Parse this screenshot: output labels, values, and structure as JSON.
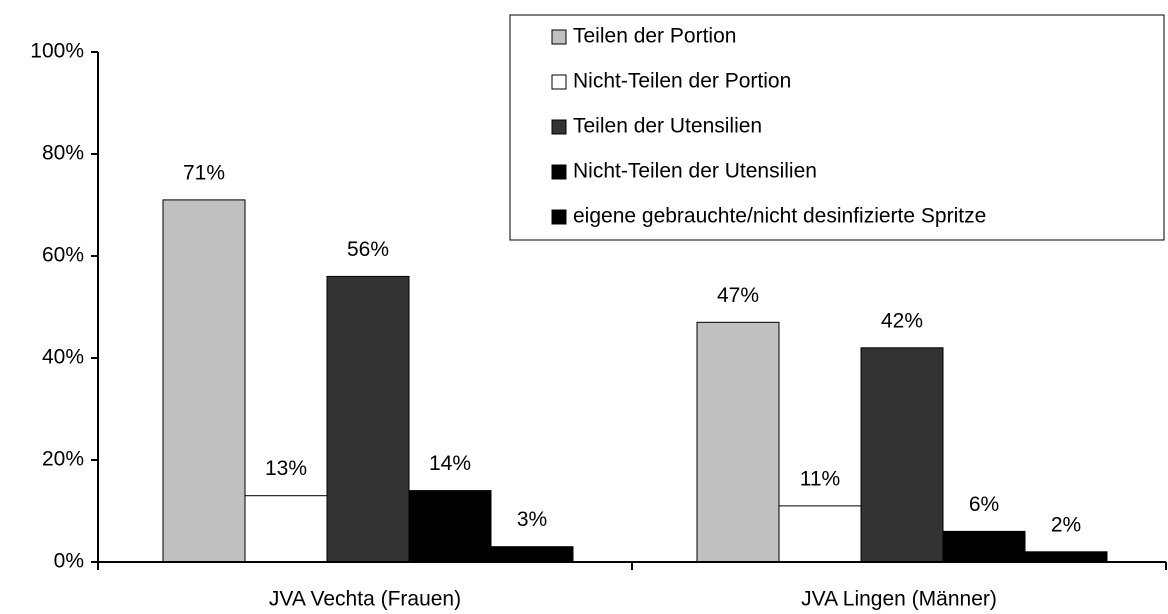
{
  "chart_data": {
    "type": "bar",
    "categories": [
      "JVA Vechta (Frauen)",
      "JVA Lingen (Männer)"
    ],
    "series": [
      {
        "name": "Teilen der Portion",
        "color": "#c0c0c0",
        "values": [
          71,
          47
        ],
        "value_labels": [
          "71%",
          "47%"
        ]
      },
      {
        "name": "Nicht-Teilen der Portion",
        "color": "#ffffff",
        "values": [
          13,
          11
        ],
        "value_labels": [
          "13%",
          "11%"
        ]
      },
      {
        "name": "Teilen der Utensilien",
        "color": "#333333",
        "values": [
          56,
          42
        ],
        "value_labels": [
          "56%",
          "42%"
        ]
      },
      {
        "name": "Nicht-Teilen der Utensilien",
        "color": "#000000",
        "values": [
          14,
          6
        ],
        "value_labels": [
          "14%",
          "6%"
        ]
      },
      {
        "name": "eigene gebrauchte/nicht desinfizierte Spritze",
        "color": "#000000",
        "values": [
          3,
          2
        ],
        "value_labels": [
          "3%",
          "2%"
        ]
      }
    ],
    "ylim": [
      0,
      100
    ],
    "yticks": [
      {
        "value": 0,
        "label": "0%"
      },
      {
        "value": 20,
        "label": "20%"
      },
      {
        "value": 40,
        "label": "40%"
      },
      {
        "value": 60,
        "label": "60%"
      },
      {
        "value": 80,
        "label": "80%"
      },
      {
        "value": 100,
        "label": "100%"
      }
    ],
    "legend": "upper right"
  }
}
